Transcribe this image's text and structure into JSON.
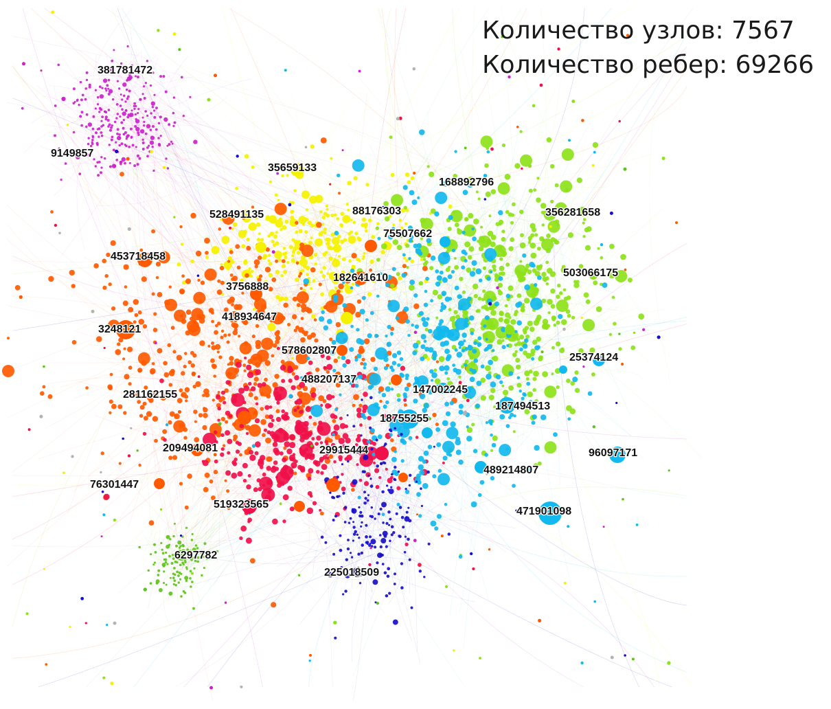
{
  "stats": {
    "nodes_text": "Количество узлов: 7567",
    "edges_text": "Количество ребер: 69266"
  },
  "communities": [
    {
      "name": "magenta",
      "color": "#cc22cc"
    },
    {
      "name": "yellow",
      "color": "#f5f200"
    },
    {
      "name": "orange",
      "color": "#ff5a00"
    },
    {
      "name": "red",
      "color": "#f0104a"
    },
    {
      "name": "light-green",
      "color": "#8ee21a"
    },
    {
      "name": "cyan",
      "color": "#12b9ee"
    },
    {
      "name": "dark-blue",
      "color": "#1a0fc8"
    },
    {
      "name": "green",
      "color": "#5ec41a"
    },
    {
      "name": "gray",
      "color": "#b3b3b3"
    }
  ],
  "labels": [
    "381781472",
    "9149857",
    "35659133",
    "168892796",
    "528491135",
    "88176303",
    "356281658",
    "75507662",
    "453718458",
    "503066175",
    "182641610",
    "3756888",
    "418934647",
    "3248121",
    "578602807",
    "25374124",
    "488207137",
    "147002245",
    "281162155",
    "187494513",
    "18755255",
    "209494081",
    "29915444",
    "96097171",
    "489214807",
    "76301447",
    "519323565",
    "471901098",
    "6297782",
    "225018509"
  ]
}
